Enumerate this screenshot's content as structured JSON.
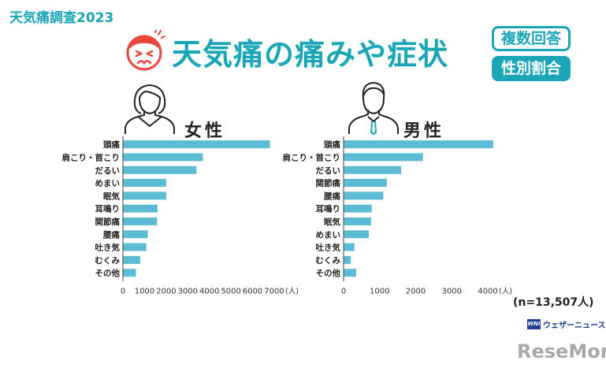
{
  "header": {
    "survey_label": "天気痛調査2023",
    "title": "天気痛の痛みや症状",
    "badge_1": "複数回答",
    "badge_2": "性別割合"
  },
  "colors": {
    "accent": "#1aa6b7",
    "bar": "#5bbcd3",
    "face": "#e8473d"
  },
  "icons": {
    "title_icon": "pained-face-icon",
    "female_icon": "woman-outline-icon",
    "male_icon": "man-outline-icon"
  },
  "female": {
    "label": "女性"
  },
  "male": {
    "label": "男性"
  },
  "footer": {
    "n_label": "(n=13,507人)",
    "wni_mark": "WNI",
    "wni_text": "ウェザーニュース",
    "resemom": "ReseMom"
  },
  "chart_data": [
    {
      "type": "bar",
      "orientation": "horizontal",
      "series": [
        {
          "values": [
            6800,
            3700,
            3400,
            2000,
            2000,
            1600,
            1580,
            1150,
            1080,
            800,
            600
          ]
        }
      ],
      "categories": [
        "頭痛",
        "肩こり・首こり",
        "だるい",
        "めまい",
        "眠気",
        "耳鳴り",
        "関節痛",
        "腰痛",
        "吐き気",
        "むくみ",
        "その他"
      ],
      "xlim": [
        0,
        7000
      ],
      "ticks": [
        0,
        1000,
        2000,
        3000,
        4000,
        5000,
        6000,
        7000
      ],
      "unit": "(人)"
    },
    {
      "type": "bar",
      "orientation": "horizontal",
      "series": [
        {
          "values": [
            4150,
            2200,
            1600,
            1200,
            1100,
            780,
            760,
            700,
            300,
            200,
            350
          ]
        }
      ],
      "categories": [
        "頭痛",
        "肩こり・首こり",
        "だるい",
        "関節痛",
        "腰痛",
        "耳鳴り",
        "眠気",
        "めまい",
        "吐き気",
        "むくみ",
        "その他"
      ],
      "xlim": [
        0,
        4500
      ],
      "ticks": [
        0,
        1000,
        2000,
        3000,
        4000
      ],
      "unit": "(人)"
    }
  ]
}
